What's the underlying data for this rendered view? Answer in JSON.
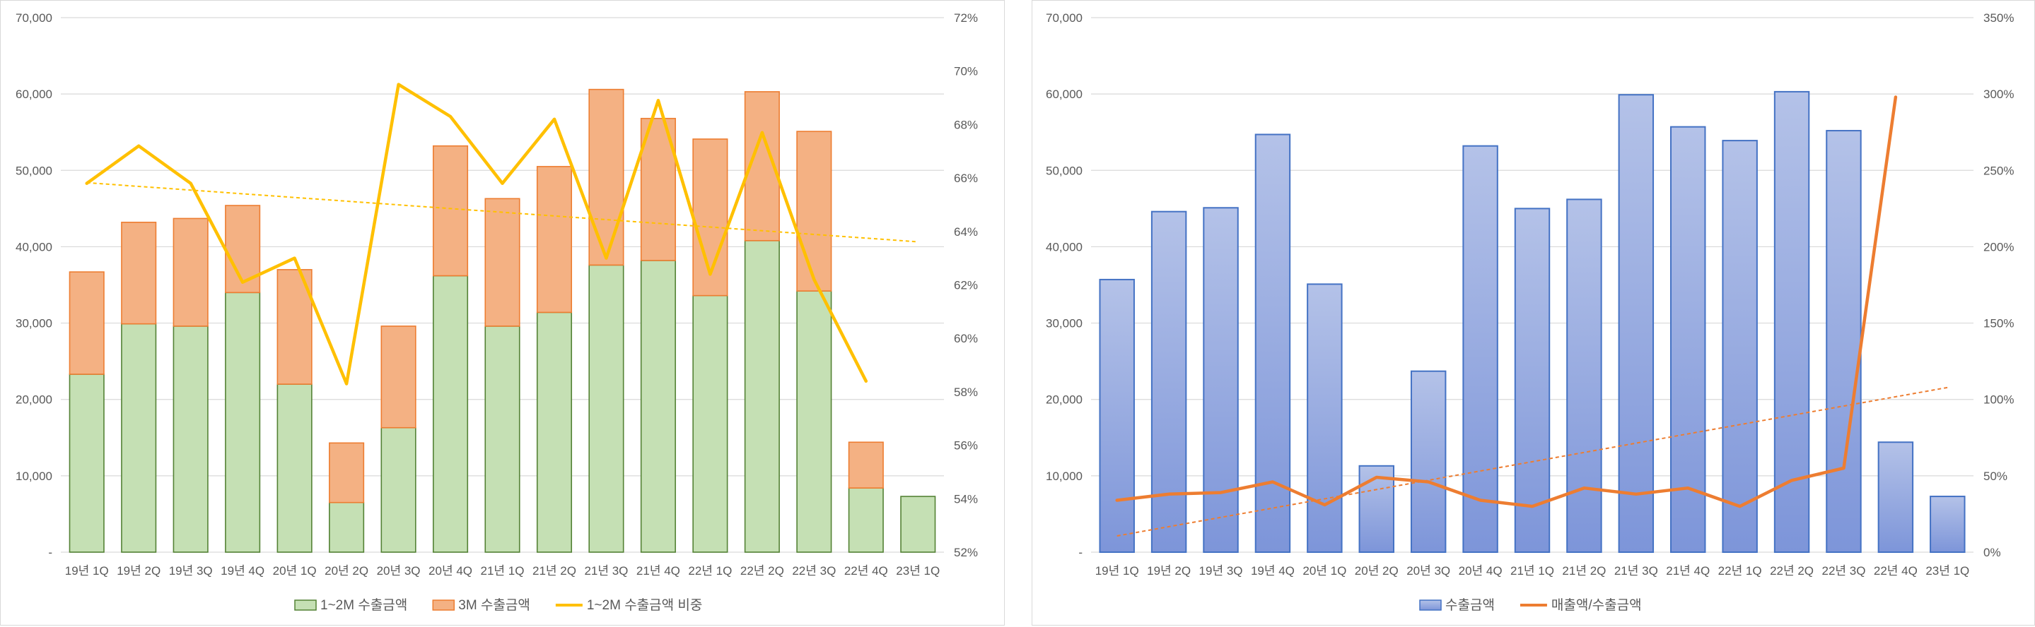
{
  "chart_data": [
    {
      "type": "bar",
      "stacked": true,
      "categories": [
        "19년 1Q",
        "19년 2Q",
        "19년 3Q",
        "19년 4Q",
        "20년 1Q",
        "20년 2Q",
        "20년 3Q",
        "20년 4Q",
        "21년 1Q",
        "21년 2Q",
        "21년 3Q",
        "21년 4Q",
        "22년 1Q",
        "22년 2Q",
        "22년 3Q",
        "22년 4Q",
        "23년 1Q"
      ],
      "series": [
        {
          "name": "1~2M 수출금액",
          "kind": "bar",
          "axis": "left",
          "color": "#c5e0b4",
          "stroke": "#548235",
          "values": [
            23300,
            29900,
            29600,
            34000,
            22000,
            6500,
            16300,
            36200,
            29600,
            31400,
            37600,
            38200,
            33600,
            40800,
            34200,
            8400,
            7300
          ]
        },
        {
          "name": "3M 수출금액",
          "kind": "bar",
          "axis": "left",
          "color": "#f4b183",
          "stroke": "#ed7d31",
          "values": [
            13400,
            13300,
            14100,
            11400,
            15000,
            7800,
            13300,
            17000,
            16700,
            19100,
            23000,
            18600,
            20500,
            19500,
            20900,
            6000,
            null
          ]
        },
        {
          "name": "1~2M 수출금액 비중",
          "kind": "line",
          "axis": "right",
          "color": "#ffc000",
          "values": [
            65.8,
            67.2,
            65.8,
            62.1,
            63.0,
            58.3,
            69.5,
            68.3,
            65.8,
            68.2,
            63.0,
            68.9,
            62.4,
            67.7,
            62.2,
            58.4,
            null
          ]
        }
      ],
      "trendline": {
        "series": "1~2M 수출금액 비중",
        "color": "#ffc000",
        "dashed": true
      },
      "yticks_left": [
        "-",
        "10,000",
        "20,000",
        "30,000",
        "40,000",
        "50,000",
        "60,000",
        "70,000"
      ],
      "yticks_right": [
        "52%",
        "54%",
        "56%",
        "58%",
        "60%",
        "62%",
        "64%",
        "66%",
        "68%",
        "70%",
        "72%"
      ],
      "ylim": [
        0,
        70000
      ],
      "y2lim": [
        52,
        72
      ],
      "grid": true,
      "legend_position": "bottom"
    },
    {
      "type": "bar",
      "categories": [
        "19년 1Q",
        "19년 2Q",
        "19년 3Q",
        "19년 4Q",
        "20년 1Q",
        "20년 2Q",
        "20년 3Q",
        "20년 4Q",
        "21년 1Q",
        "21년 2Q",
        "21년 3Q",
        "21년 4Q",
        "22년 1Q",
        "22년 2Q",
        "22년 3Q",
        "22년 4Q",
        "23년 1Q"
      ],
      "series": [
        {
          "name": "수출금액",
          "kind": "bar",
          "axis": "left",
          "color": "#8fa4dc",
          "stroke": "#4472c4",
          "values": [
            35700,
            44600,
            45100,
            54700,
            35100,
            11300,
            23700,
            53200,
            45000,
            46200,
            59900,
            55700,
            53900,
            60300,
            55200,
            14400,
            7300
          ]
        },
        {
          "name": "매출액/수출금액",
          "kind": "line",
          "axis": "right",
          "color": "#ed7d31",
          "values": [
            34,
            38,
            39,
            46,
            31,
            49,
            46,
            34,
            30,
            42,
            38,
            42,
            30,
            47,
            55,
            298,
            null
          ]
        }
      ],
      "trendline": {
        "series": "매출액/수출금액",
        "color": "#ed7d31",
        "dashed": true
      },
      "yticks_left": [
        "-",
        "10,000",
        "20,000",
        "30,000",
        "40,000",
        "50,000",
        "60,000",
        "70,000"
      ],
      "yticks_right": [
        "0%",
        "50%",
        "100%",
        "150%",
        "200%",
        "250%",
        "300%",
        "350%"
      ],
      "ylim": [
        0,
        70000
      ],
      "y2lim": [
        0,
        350
      ],
      "grid": true,
      "legend_position": "bottom"
    }
  ]
}
